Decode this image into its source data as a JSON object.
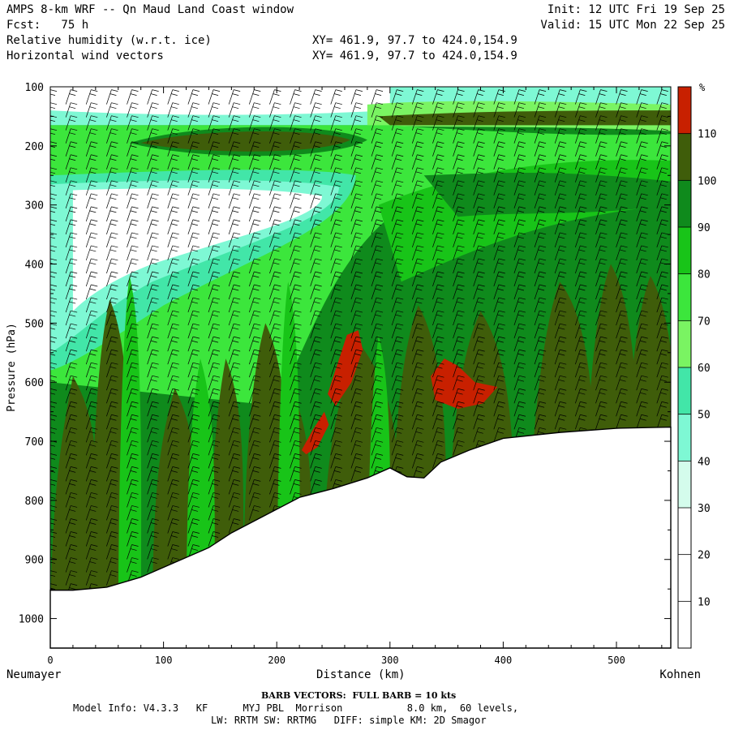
{
  "header": {
    "title_left": "AMPS 8-km WRF -- Qn Maud Land Coast window",
    "fcst_left": "Fcst:   75 h",
    "field1_left": "Relative humidity (w.r.t. ice)",
    "field2_left": "Horizontal wind vectors",
    "xy1": "XY= 461.9, 97.7 to 424.0,154.9",
    "xy2": "XY= 461.9, 97.7 to 424.0,154.9",
    "init_right": "Init: 12 UTC Fri 19 Sep 25",
    "valid_right": "Valid: 15 UTC Mon 22 Sep 25"
  },
  "footer": {
    "barb_note": "BARB VECTORS:  FULL BARB = 10 kts",
    "model_info": "Model Info: V4.3.3   KF      MYJ PBL  Morrison           8.0 km,  60 levels,",
    "physics": "LW: RRTM SW: RRTMG   DIFF: simple KM: 2D Smagor"
  },
  "chart_data": {
    "type": "heatmap",
    "xlabel": "Distance (km)",
    "ylabel": "Pressure (hPa)",
    "x_left_label": "Neumayer",
    "x_right_label": "Kohnen",
    "xlim": [
      0,
      548
    ],
    "ylim_hpa": [
      100,
      1050
    ],
    "x_ticks": [
      0,
      100,
      200,
      300,
      400,
      500
    ],
    "y_ticks": [
      100,
      200,
      300,
      400,
      500,
      600,
      700,
      800,
      900,
      1000
    ],
    "colorbar": {
      "unit": "%",
      "labels": [
        10,
        20,
        30,
        40,
        50,
        60,
        70,
        80,
        90,
        100,
        110
      ],
      "levels": [
        {
          "min": 0,
          "max": 30,
          "color": "#ffffff"
        },
        {
          "min": 30,
          "max": 40,
          "color": "#d4fcec"
        },
        {
          "min": 40,
          "max": 50,
          "color": "#7ef8d4"
        },
        {
          "min": 50,
          "max": 60,
          "color": "#42e6a8"
        },
        {
          "min": 60,
          "max": 70,
          "color": "#7af462"
        },
        {
          "min": 70,
          "max": 80,
          "color": "#3ce63c"
        },
        {
          "min": 80,
          "max": 90,
          "color": "#18c418"
        },
        {
          "min": 90,
          "max": 100,
          "color": "#0f8a1c"
        },
        {
          "min": 100,
          "max": 110,
          "color": "#3f5d0a"
        },
        {
          "min": 110,
          "max": 120,
          "color": "#c82000"
        }
      ]
    },
    "terrain_hpa": [
      [
        0,
        952
      ],
      [
        20,
        952
      ],
      [
        50,
        947
      ],
      [
        80,
        930
      ],
      [
        110,
        905
      ],
      [
        140,
        880
      ],
      [
        160,
        855
      ],
      [
        190,
        825
      ],
      [
        220,
        795
      ],
      [
        250,
        780
      ],
      [
        280,
        762
      ],
      [
        300,
        745
      ],
      [
        315,
        760
      ],
      [
        330,
        762
      ],
      [
        345,
        735
      ],
      [
        370,
        715
      ],
      [
        400,
        695
      ],
      [
        450,
        685
      ],
      [
        500,
        678
      ],
      [
        548,
        676
      ]
    ],
    "rh_regions": [
      {
        "level": 110,
        "points": [
          [
            262,
            520
          ],
          [
            272,
            512
          ],
          [
            276,
            545
          ],
          [
            266,
            600
          ],
          [
            252,
            640
          ],
          [
            245,
            620
          ]
        ]
      },
      {
        "level": 110,
        "points": [
          [
            222,
            715
          ],
          [
            232,
            680
          ],
          [
            242,
            650
          ],
          [
            246,
            672
          ],
          [
            236,
            710
          ],
          [
            226,
            722
          ]
        ]
      },
      {
        "level": 110,
        "points": [
          [
            336,
            590
          ],
          [
            348,
            560
          ],
          [
            360,
            572
          ],
          [
            375,
            600
          ],
          [
            395,
            608
          ],
          [
            382,
            636
          ],
          [
            360,
            645
          ],
          [
            340,
            630
          ]
        ]
      }
    ],
    "wind_barbs": {
      "full_barb_kts": 10
    }
  }
}
